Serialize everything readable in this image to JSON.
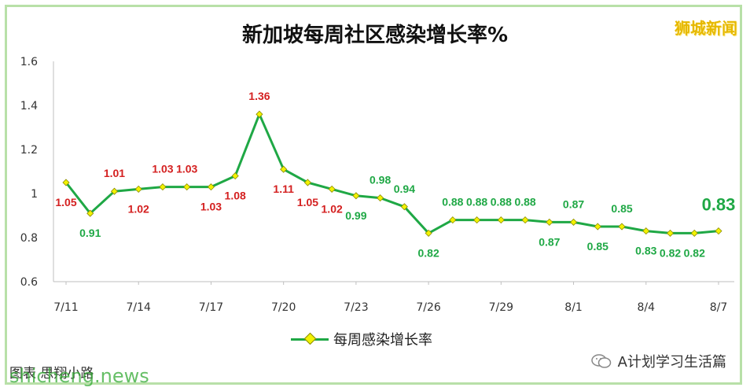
{
  "brand": "狮城新闻",
  "credit": "图表 思翔小路",
  "watermark": "shicheng.news",
  "wechat_label": "A计划学习生活篇",
  "colors": {
    "line": "#1fa845",
    "marker": "#f2f200",
    "label_high": "#d42020",
    "label_low": "#1fa845",
    "grid": "#d9d9d9"
  },
  "chart_data": {
    "type": "line",
    "title": "新加坡每周社区感染增长率%",
    "xlabel": "",
    "ylabel": "",
    "ylim": [
      0.6,
      1.6
    ],
    "yticks": [
      "0.6",
      "0.8",
      "1",
      "1.2",
      "1.4",
      "1.6"
    ],
    "grid": false,
    "legend": "bottom",
    "x_tick_labels": [
      "7/11",
      "7/14",
      "7/17",
      "7/20",
      "7/23",
      "7/26",
      "7/29",
      "8/1",
      "8/4",
      "8/7"
    ],
    "categories": [
      "7/11",
      "7/12",
      "7/13",
      "7/14",
      "7/15",
      "7/16",
      "7/17",
      "7/18",
      "7/19",
      "7/20",
      "7/21",
      "7/22",
      "7/23",
      "7/24",
      "7/25",
      "7/26",
      "7/27",
      "7/28",
      "7/29",
      "7/30",
      "7/31",
      "8/1",
      "8/2",
      "8/3",
      "8/4",
      "8/5",
      "8/6",
      "8/7"
    ],
    "series": [
      {
        "name": "每周感染增长率",
        "values": [
          1.05,
          0.91,
          1.01,
          1.02,
          1.03,
          1.03,
          1.03,
          1.08,
          1.36,
          1.11,
          1.05,
          1.02,
          0.99,
          0.98,
          0.94,
          0.82,
          0.88,
          0.88,
          0.88,
          0.88,
          0.87,
          0.87,
          0.85,
          0.85,
          0.83,
          0.82,
          0.82,
          0.83
        ],
        "data_labels": [
          "1.05",
          "0.91",
          "1.01",
          "1.02",
          "1.03",
          "1.03",
          "1.03",
          "1.08",
          "1.36",
          "1.11",
          "1.05",
          "1.02",
          "0.99",
          "0.98",
          "0.94",
          "0.82",
          "0.88",
          "0.88",
          "0.88",
          "0.88",
          "0.87",
          "0.87",
          "0.85",
          "0.85",
          "0.83",
          "0.82",
          "0.82",
          "0.83"
        ]
      }
    ]
  }
}
